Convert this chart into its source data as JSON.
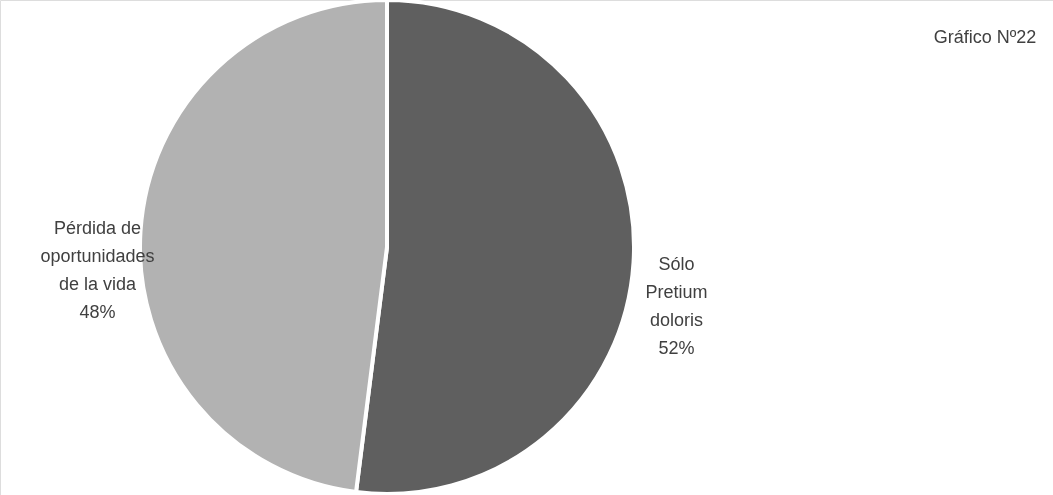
{
  "chart_data": {
    "type": "pie",
    "title": "Gráfico Nº22",
    "categories": [
      "Sólo Pretium doloris",
      "Pérdida de oportunidades de la vida"
    ],
    "values": [
      52,
      48
    ],
    "colors": [
      "#5f5f5f",
      "#b2b2b2"
    ],
    "value_labels": [
      "52%",
      "48%"
    ]
  }
}
